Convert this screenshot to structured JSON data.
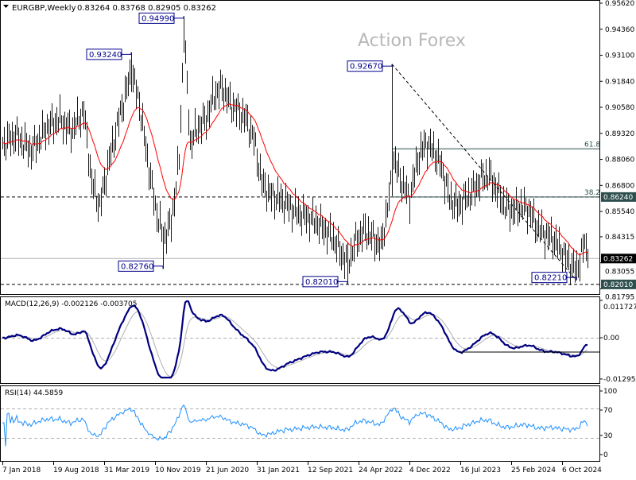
{
  "header": {
    "symbol_period": "EURGBP,Weekly",
    "ohlc": "0.83264 0.83768 0.82905 0.83262"
  },
  "watermark": "Action Forex",
  "colors": {
    "bars": "#1a1a1a",
    "ma": "#ff0000",
    "macd": "#000080",
    "signal": "#b0b0b0",
    "rsi": "#1e90ff",
    "annotation": "#00008b",
    "level_tag": "#2f4f4f"
  },
  "chart_data": [
    {
      "type": "bar",
      "title": "EURGBP,Weekly",
      "x_tick_labels": [
        "7 Jan 2018",
        "19 Aug 2018",
        "31 Mar 2019",
        "10 Nov 2019",
        "21 Jun 2020",
        "31 Jan 2021",
        "12 Sep 2021",
        "24 Apr 2022",
        "4 Dec 2022",
        "16 Jul 2023",
        "25 Feb 2024",
        "6 Oct 2024"
      ],
      "y_tick_labels": [
        "0.95620",
        "0.94360",
        "0.93100",
        "0.91840",
        "0.90580",
        "0.89320",
        "0.88060",
        "0.86800",
        "0.85540",
        "0.84315",
        "0.83055",
        "0.81795"
      ],
      "ylim": [
        0.8167,
        0.9575
      ],
      "x_unit": "weeks since 7 Jan 2018",
      "close_path": [
        [
          1,
          0.8885
        ],
        [
          8,
          0.8923
        ],
        [
          18,
          0.8847
        ],
        [
          28,
          0.8962
        ],
        [
          36,
          0.9
        ],
        [
          43,
          0.8943
        ],
        [
          51,
          0.9039
        ],
        [
          56,
          0.8693
        ],
        [
          61,
          0.8577
        ],
        [
          66,
          0.877
        ],
        [
          73,
          0.9
        ],
        [
          81,
          0.9231
        ],
        [
          86,
          0.9077
        ],
        [
          91,
          0.8808
        ],
        [
          96,
          0.8577
        ],
        [
          101,
          0.8424
        ],
        [
          106,
          0.85
        ],
        [
          111,
          0.8808
        ],
        [
          114,
          0.9424
        ],
        [
          118,
          0.8885
        ],
        [
          123,
          0.8962
        ],
        [
          128,
          0.9
        ],
        [
          133,
          0.9116
        ],
        [
          138,
          0.9154
        ],
        [
          143,
          0.9077
        ],
        [
          148,
          0.9039
        ],
        [
          153,
          0.9
        ],
        [
          158,
          0.8904
        ],
        [
          163,
          0.8693
        ],
        [
          168,
          0.8635
        ],
        [
          173,
          0.8616
        ],
        [
          178,
          0.8597
        ],
        [
          183,
          0.8558
        ],
        [
          188,
          0.8539
        ],
        [
          193,
          0.852
        ],
        [
          198,
          0.85
        ],
        [
          203,
          0.8462
        ],
        [
          208,
          0.8424
        ],
        [
          213,
          0.8347
        ],
        [
          217,
          0.8308
        ],
        [
          223,
          0.8424
        ],
        [
          228,
          0.8462
        ],
        [
          233,
          0.8424
        ],
        [
          238,
          0.8385
        ],
        [
          243,
          0.8616
        ],
        [
          246,
          0.8808
        ],
        [
          251,
          0.8693
        ],
        [
          256,
          0.8616
        ],
        [
          261,
          0.8808
        ],
        [
          266,
          0.8885
        ],
        [
          271,
          0.8847
        ],
        [
          276,
          0.877
        ],
        [
          281,
          0.8616
        ],
        [
          286,
          0.8577
        ],
        [
          291,
          0.8616
        ],
        [
          296,
          0.8654
        ],
        [
          301,
          0.8712
        ],
        [
          306,
          0.8731
        ],
        [
          311,
          0.8654
        ],
        [
          316,
          0.8577
        ],
        [
          321,
          0.8558
        ],
        [
          326,
          0.8577
        ],
        [
          331,
          0.8558
        ],
        [
          336,
          0.8481
        ],
        [
          341,
          0.8443
        ],
        [
          346,
          0.8424
        ],
        [
          351,
          0.8366
        ],
        [
          356,
          0.8308
        ],
        [
          361,
          0.827
        ],
        [
          366,
          0.8404
        ],
        [
          368,
          0.8326
        ]
      ],
      "annotations": [
        {
          "label": "0.94990",
          "week": 114,
          "value": 0.9499,
          "side": "left",
          "pos": "above"
        },
        {
          "label": "0.93240",
          "week": 81,
          "value": 0.9324,
          "side": "left",
          "pos": "above"
        },
        {
          "label": "0.92670",
          "week": 245,
          "value": 0.9267,
          "side": "left",
          "pos": "above"
        },
        {
          "label": "0.82760",
          "week": 101,
          "value": 0.8276,
          "side": "left",
          "pos": "below"
        },
        {
          "label": "0.82010",
          "week": 217,
          "value": 0.8201,
          "side": "left",
          "pos": "below"
        },
        {
          "label": "0.82210",
          "week": 361,
          "value": 0.8221,
          "side": "left",
          "pos": "below"
        }
      ],
      "levels": {
        "resistance": {
          "value": 0.8624,
          "label": "0.86240"
        },
        "support": {
          "value": 0.8201,
          "label": "0.82010"
        },
        "current": {
          "value": 0.83262,
          "label": "0.83262"
        }
      },
      "fib": [
        {
          "label": "61.8",
          "value": 0.8857
        },
        {
          "label": "38.2",
          "value": 0.8624
        }
      ],
      "trendline": {
        "from": {
          "week": 245,
          "value": 0.9267
        },
        "to": {
          "week": 361,
          "value": 0.8221
        }
      }
    },
    {
      "type": "line",
      "title": "MACD(12,26,9) -0.002126 -0.003705",
      "y_tick_labels": [
        "0.011727",
        "0.00",
        "-0.012951"
      ],
      "ylim": [
        -0.012951,
        0.011727
      ],
      "series": [
        {
          "name": "MACD(12,26,9)",
          "last": -0.002126
        },
        {
          "name": "Signal",
          "last": -0.003705
        }
      ],
      "support_line": -0.0045
    },
    {
      "type": "line",
      "title": "RSI(14) 44.5859",
      "y_tick_labels": [
        "100",
        "70",
        "30",
        "0"
      ],
      "ylim": [
        0,
        100
      ],
      "levels": [
        70,
        30
      ],
      "series": [
        {
          "name": "RSI(14)",
          "last": 44.5859
        }
      ]
    }
  ]
}
